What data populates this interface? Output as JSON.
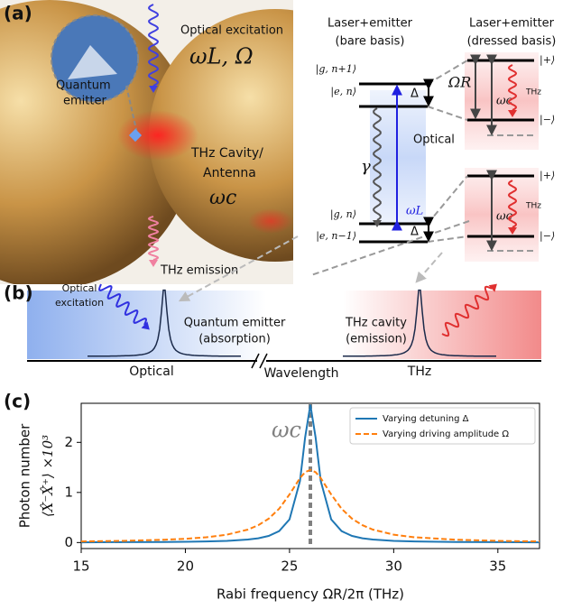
{
  "panel_labels": [
    "(a)",
    "(b)",
    "(c)"
  ],
  "panel_a": {
    "optical_excitation": "Optical excitation",
    "laser_params": "ωL, Ω",
    "quantum_emitter": [
      "Quantum",
      "emitter"
    ],
    "cavity": [
      "THz Cavity/",
      "Antenna"
    ],
    "cavity_freq": "ωc",
    "thz_emission": "THz emission"
  },
  "energy_levels": {
    "bare_title": [
      "Laser+emitter",
      "(bare basis)"
    ],
    "dressed_title": [
      "Laser+emitter",
      "(dressed basis)"
    ],
    "bare_states": [
      "|g, n+1⟩",
      "|e, n⟩",
      "|g, n⟩",
      "|e, n−1⟩"
    ],
    "detuning": "Δ",
    "decay": "γ",
    "optical": "Optical",
    "laser_freq": "ωL",
    "rabi": "ΩR",
    "cavity_freq": "ωc",
    "thz": "THz",
    "plus": "|+⟩",
    "minus": "|−⟩"
  },
  "panel_b": {
    "optical_excitation": [
      "Optical",
      "excitation"
    ],
    "emitter": [
      "Quantum emitter",
      "(absorption)"
    ],
    "cavity": [
      "THz cavity",
      "(emission)"
    ],
    "optical": "Optical",
    "axis": "Wavelength",
    "thz": "THz"
  },
  "chart_data": {
    "type": "line",
    "xlabel": "Rabi frequency ΩR/2π (THz)",
    "ylabel": [
      "Photon number",
      "⟨X̂⁻X̂⁺⟩ ×10³"
    ],
    "x": [
      15,
      17,
      19,
      20,
      21,
      22,
      23,
      23.5,
      24,
      24.5,
      25,
      25.5,
      25.75,
      26,
      26.25,
      26.5,
      27,
      27.5,
      28,
      28.5,
      29,
      30,
      31,
      33,
      35,
      37
    ],
    "series": [
      {
        "name": "Varying detuning Δ",
        "color": "#1f77b4",
        "dash": false,
        "values": [
          0.005,
          0.007,
          0.011,
          0.015,
          0.022,
          0.034,
          0.061,
          0.086,
          0.133,
          0.227,
          0.463,
          1.23,
          2.1,
          2.75,
          2.1,
          1.23,
          0.463,
          0.227,
          0.133,
          0.086,
          0.061,
          0.034,
          0.022,
          0.011,
          0.007,
          0.005
        ]
      },
      {
        "name": "Varying driving amplitude Ω",
        "color": "#ff7f0e",
        "dash": true,
        "values": [
          0.023,
          0.034,
          0.056,
          0.075,
          0.105,
          0.158,
          0.259,
          0.346,
          0.477,
          0.675,
          0.96,
          1.286,
          1.405,
          1.45,
          1.405,
          1.286,
          0.96,
          0.675,
          0.477,
          0.346,
          0.259,
          0.158,
          0.105,
          0.056,
          0.034,
          0.023
        ]
      }
    ],
    "xlim": [
      15,
      37
    ],
    "ylim": [
      -0.12,
      2.78
    ],
    "xticks": [
      15,
      20,
      25,
      30,
      35
    ],
    "yticks": [
      0,
      1,
      2
    ],
    "vline": {
      "x": 26,
      "label": "ωc",
      "color": "#808080"
    },
    "legend": "upper right"
  }
}
